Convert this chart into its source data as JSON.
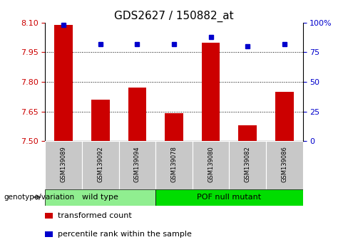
{
  "title": "GDS2627 / 150882_at",
  "samples": [
    "GSM139089",
    "GSM139092",
    "GSM139094",
    "GSM139078",
    "GSM139080",
    "GSM139082",
    "GSM139086"
  ],
  "transformed_counts": [
    8.09,
    7.71,
    7.77,
    7.64,
    8.0,
    7.58,
    7.75
  ],
  "percentile_ranks": [
    98,
    82,
    82,
    82,
    88,
    80,
    82
  ],
  "left_ylim": [
    7.5,
    8.1
  ],
  "right_ylim": [
    0,
    100
  ],
  "left_yticks": [
    7.5,
    7.65,
    7.8,
    7.95,
    8.1
  ],
  "right_yticks": [
    0,
    25,
    50,
    75,
    100
  ],
  "right_yticklabels": [
    "0",
    "25",
    "50",
    "75",
    "100%"
  ],
  "left_ytick_color": "#cc0000",
  "right_ytick_color": "#0000cc",
  "bar_color": "#cc0000",
  "dot_color": "#0000cc",
  "grid_yticks": [
    7.65,
    7.8,
    7.95
  ],
  "groups": [
    {
      "label": "wild type",
      "indices": [
        0,
        1,
        2
      ],
      "color": "#90ee90"
    },
    {
      "label": "POF null mutant",
      "indices": [
        3,
        4,
        5,
        6
      ],
      "color": "#00dd00"
    }
  ],
  "legend": [
    {
      "label": "transformed count",
      "color": "#cc0000"
    },
    {
      "label": "percentile rank within the sample",
      "color": "#0000cc"
    }
  ],
  "bar_width": 0.5,
  "bar_bottom": 7.5,
  "background_color": "#ffffff",
  "title_fontsize": 11,
  "tick_fontsize": 8,
  "sample_fontsize": 6,
  "group_fontsize": 8,
  "legend_fontsize": 8
}
